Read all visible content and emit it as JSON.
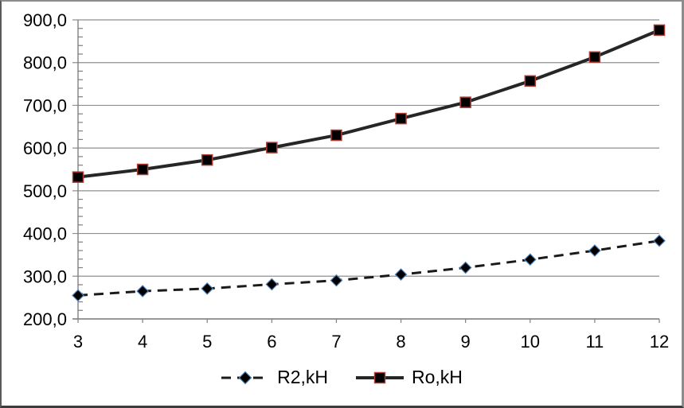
{
  "chart_data": {
    "type": "line",
    "x": [
      3,
      4,
      5,
      6,
      7,
      8,
      9,
      10,
      11,
      12
    ],
    "x_tick_labels": [
      "3",
      "4",
      "5",
      "6",
      "7",
      "8",
      "9",
      "10",
      "11",
      "12"
    ],
    "y_tick_labels": [
      "200,0",
      "300,0",
      "400,0",
      "500,0",
      "600,0",
      "700,0",
      "800,0",
      "900,0"
    ],
    "xlim": [
      3,
      12
    ],
    "ylim": [
      200,
      900
    ],
    "y_major_step": 100,
    "y_minor_step": 20,
    "grid": "horizontal-major",
    "legend_position": "bottom-center",
    "series": [
      {
        "name": "R2,kH",
        "values": [
          255,
          265,
          271,
          281,
          290,
          304,
          320,
          339,
          360,
          383
        ],
        "line": "dashed",
        "marker": "diamond",
        "line_color": "#1a1a1a",
        "marker_fill": "#000000",
        "marker_edge": "#4a7ebb"
      },
      {
        "name": "Ro,kH",
        "values": [
          532,
          550,
          572,
          601,
          630,
          669,
          707,
          757,
          813,
          876
        ],
        "line": "solid",
        "marker": "square",
        "line_color": "#262626",
        "marker_fill": "#000000",
        "marker_edge": "#b13b33"
      }
    ],
    "colors": {
      "background": "#ffffff",
      "gridline": "#8f8f8f",
      "axis": "#808080",
      "text": "#000000"
    }
  }
}
